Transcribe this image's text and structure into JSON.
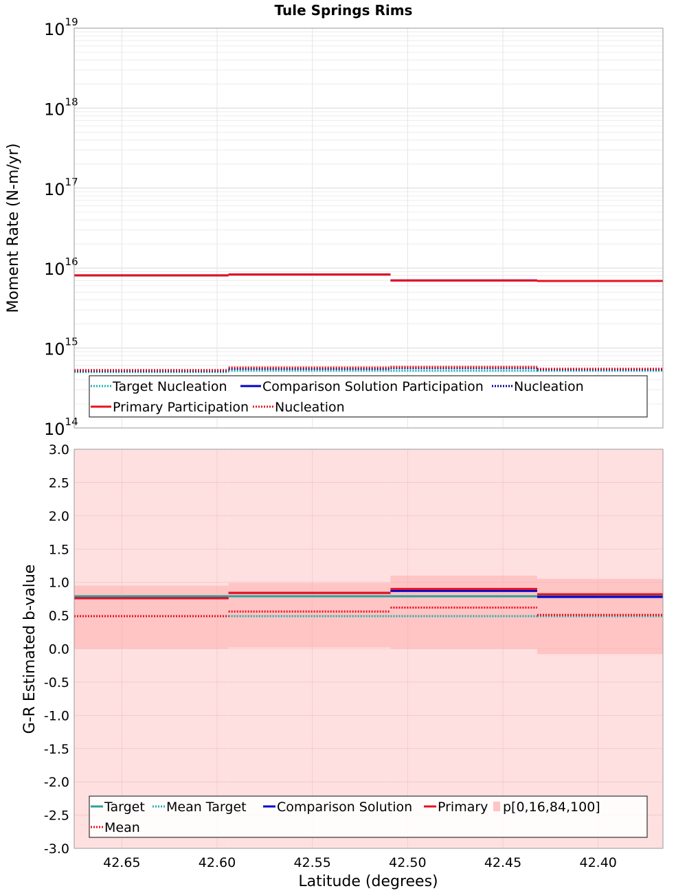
{
  "chart_data": [
    {
      "type": "line",
      "panel": "top",
      "title": "Tule Springs Rims",
      "ylabel": "Moment Rate (N-m/yr)",
      "yscale": "log",
      "ylim": [
        100000000000000.0,
        1e+19
      ],
      "y_tick_labels": [
        {
          "base": "10",
          "exp": "14",
          "value": 100000000000000.0
        },
        {
          "base": "10",
          "exp": "15",
          "value": 1000000000000000.0
        },
        {
          "base": "10",
          "exp": "16",
          "value": 1e+16
        },
        {
          "base": "10",
          "exp": "17",
          "value": 1e+17
        },
        {
          "base": "10",
          "exp": "18",
          "value": 1e+18
        },
        {
          "base": "10",
          "exp": "19",
          "value": 1e+19
        }
      ],
      "xlim": [
        42.675,
        42.366
      ],
      "x_reversed": true,
      "grid": true,
      "legend_position": "bottom",
      "segments": [
        42.675,
        42.594,
        42.509,
        42.432,
        42.366
      ],
      "series": [
        {
          "name": "Target Nucleation",
          "color": "#1bb0b0",
          "style": "dotted",
          "values": [
            500000000000000.0,
            520000000000000.0,
            520000000000000.0,
            520000000000000.0
          ]
        },
        {
          "name": "Comparison Solution Participation",
          "color": "#0000cc",
          "style": "solid",
          "values": [
            8100000000000000.0,
            8300000000000000.0,
            7000000000000000.0,
            6900000000000000.0
          ]
        },
        {
          "name": "Nucleation",
          "color": "#00008b",
          "style": "dotted",
          "values": [
            520000000000000.0,
            550000000000000.0,
            560000000000000.0,
            540000000000000.0
          ]
        },
        {
          "name": "Primary Participation",
          "color": "#e8101e",
          "style": "solid",
          "values": [
            8100000000000000.0,
            8300000000000000.0,
            7000000000000000.0,
            6900000000000000.0
          ]
        },
        {
          "name": "Nucleation",
          "color": "#e8101e",
          "style": "dotted",
          "values": [
            530000000000000.0,
            570000000000000.0,
            580000000000000.0,
            550000000000000.0
          ]
        }
      ]
    },
    {
      "type": "line",
      "panel": "bottom",
      "xlabel": "Latitude (degrees)",
      "ylabel": "G-R Estimated b-value",
      "ylim": [
        -3.0,
        3.0
      ],
      "y_ticks": [
        "-3.0",
        "-2.5",
        "-2.0",
        "-1.5",
        "-1.0",
        "-0.5",
        "0.0",
        "0.5",
        "1.0",
        "1.5",
        "2.0",
        "2.5",
        "3.0"
      ],
      "x_ticks": [
        "42.65",
        "42.60",
        "42.55",
        "42.50",
        "42.45",
        "42.40"
      ],
      "xlim": [
        42.675,
        42.366
      ],
      "x_reversed": true,
      "grid": true,
      "legend_position": "bottom",
      "segments": [
        42.675,
        42.594,
        42.509,
        42.432,
        42.366
      ],
      "band_outer": {
        "color": "#ffe0e0",
        "low": [
          -3.0,
          -3.0,
          -3.0,
          -3.0
        ],
        "high": [
          3.0,
          3.0,
          3.0,
          3.0
        ]
      },
      "band_inner": {
        "color": "#ffc4c4",
        "low": [
          0.0,
          0.02,
          0.0,
          -0.08
        ],
        "high": [
          0.95,
          0.99,
          1.1,
          1.05
        ]
      },
      "series": [
        {
          "name": "Target",
          "color": "#2aa19a",
          "style": "solid",
          "values": [
            0.79,
            0.79,
            0.79,
            0.79
          ]
        },
        {
          "name": "Mean Target",
          "color": "#1bb0b0",
          "style": "dotted",
          "values": [
            0.49,
            0.49,
            0.49,
            0.49
          ]
        },
        {
          "name": "Comparison Solution",
          "color": "#0000cc",
          "style": "solid",
          "values": [
            0.76,
            0.84,
            0.87,
            0.78
          ]
        },
        {
          "name": "Primary",
          "color": "#e8101e",
          "style": "solid",
          "values": [
            0.76,
            0.84,
            0.9,
            0.82
          ]
        },
        {
          "name": "p[0,16,84,100]",
          "color": "#ffc4c4",
          "style": "box"
        },
        {
          "name": "Mean",
          "color": "#e8101e",
          "style": "dotted",
          "values": [
            0.49,
            0.56,
            0.62,
            0.51
          ]
        }
      ]
    }
  ]
}
